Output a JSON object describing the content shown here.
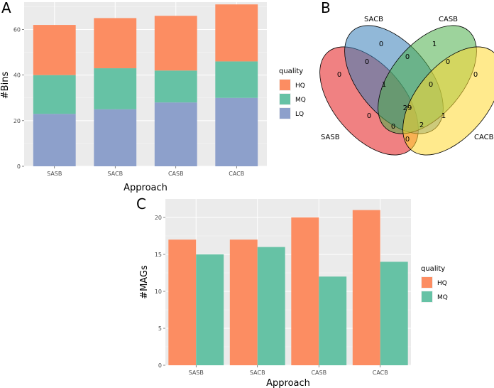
{
  "chart_data": [
    {
      "panel": "A",
      "type": "bar",
      "stacked": true,
      "title": "",
      "xlabel": "Approach",
      "ylabel": "#Bins",
      "categories": [
        "SASB",
        "SACB",
        "CASB",
        "CACB"
      ],
      "ylim": [
        0,
        72
      ],
      "yticks": [
        0,
        20,
        40,
        60
      ],
      "series": [
        {
          "name": "LQ",
          "color": "#8DA0CB",
          "values": [
            23,
            25,
            28,
            30
          ]
        },
        {
          "name": "MQ",
          "color": "#66C2A5",
          "values": [
            17,
            18,
            14,
            16
          ]
        },
        {
          "name": "HQ",
          "color": "#FC8D62",
          "values": [
            22,
            22,
            24,
            25
          ]
        }
      ],
      "legend": {
        "title": "quality",
        "position": "right",
        "entries": [
          "HQ",
          "MQ",
          "LQ"
        ]
      }
    },
    {
      "panel": "B",
      "type": "venn",
      "sets": [
        {
          "name": "SASB",
          "color": "#E41A1C"
        },
        {
          "name": "SACB",
          "color": "#377EB8"
        },
        {
          "name": "CASB",
          "color": "#4DAF4A"
        },
        {
          "name": "CACB",
          "color": "#FFD92F"
        }
      ],
      "regions": [
        {
          "sets": "SASB",
          "value": "0"
        },
        {
          "sets": "SACB",
          "value": "0"
        },
        {
          "sets": "CASB",
          "value": "1"
        },
        {
          "sets": "CACB",
          "value": "0"
        },
        {
          "sets": "SASB&SACB",
          "value": "0"
        },
        {
          "sets": "SACB&CASB",
          "value": "0"
        },
        {
          "sets": "CASB&CACB",
          "value": "0"
        },
        {
          "sets": "SASB&SACB&CASB",
          "value": "1"
        },
        {
          "sets": "SACB&CASB&CACB",
          "value": "0"
        },
        {
          "sets": "all",
          "value": "29"
        },
        {
          "sets": "SASB&CASB",
          "value": "0"
        },
        {
          "sets": "SACB&CACB",
          "value": "1"
        },
        {
          "sets": "SASB&CASB&CACB",
          "value": "0"
        },
        {
          "sets": "SASB&SACB&CACB",
          "value": "2"
        },
        {
          "sets": "SASB&CACB",
          "value": "0"
        }
      ]
    },
    {
      "panel": "C",
      "type": "bar",
      "stacked": false,
      "title": "",
      "xlabel": "Approach",
      "ylabel": "#MAGs",
      "categories": [
        "SASB",
        "SACB",
        "CASB",
        "CACB"
      ],
      "ylim": [
        0,
        22.5
      ],
      "yticks": [
        0,
        5,
        10,
        15,
        20
      ],
      "series": [
        {
          "name": "HQ",
          "color": "#FC8D62",
          "values": [
            17,
            17,
            20,
            21
          ]
        },
        {
          "name": "MQ",
          "color": "#66C2A5",
          "values": [
            15,
            16,
            12,
            14
          ]
        }
      ],
      "legend": {
        "title": "quality",
        "position": "right",
        "entries": [
          "HQ",
          "MQ"
        ]
      }
    }
  ]
}
